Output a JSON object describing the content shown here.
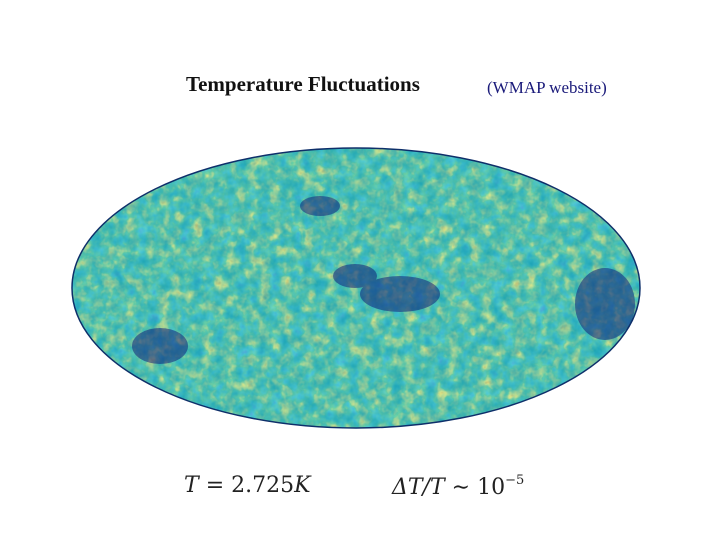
{
  "slide": {
    "title": "Temperature Fluctuations",
    "credit": "(WMAP website)"
  },
  "equations": {
    "temperature_symbol": "T",
    "temperature_value": "= 2.725",
    "temperature_unit": "K",
    "fluctuation_lhs": "ΔT/T",
    "fluctuation_approx": "∼ 10",
    "fluctuation_exponent": "−5"
  },
  "colors": {
    "deep_blue": "#12217a",
    "blue": "#1f63c2",
    "teal": "#1aa2b4",
    "green": "#35b45a",
    "yellow": "#f2e23a",
    "orange": "#f08a1c",
    "red": "#d0241c"
  }
}
